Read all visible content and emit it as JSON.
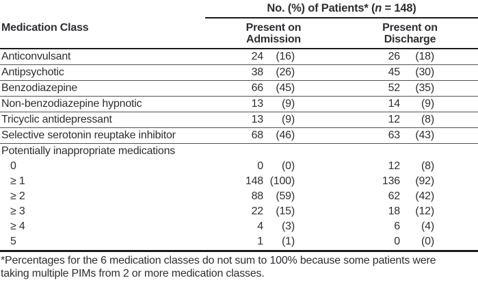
{
  "colors": {
    "text": "#2e2d31",
    "rule_heavy": "#1a191c",
    "rule_light": "#504f53",
    "background": "#ffffff"
  },
  "table": {
    "span_header": {
      "prefix": "No. (%) of Patients* (",
      "n_italic": "n",
      "suffix": " = 148)"
    },
    "medication_class_header": "Medication Class",
    "admission_header_line1": "Present on",
    "admission_header_line2": "Admission",
    "discharge_header_line1": "Present on",
    "discharge_header_line2": "Discharge",
    "rows": [
      {
        "label": "Anticonvulsant",
        "indent": false,
        "separator": true,
        "admission_n": "24",
        "admission_pct": "(16)",
        "discharge_n": "26",
        "discharge_pct": "(18)"
      },
      {
        "label": "Antipsychotic",
        "indent": false,
        "separator": true,
        "admission_n": "38",
        "admission_pct": "(26)",
        "discharge_n": "45",
        "discharge_pct": "(30)"
      },
      {
        "label": "Benzodiazepine",
        "indent": false,
        "separator": true,
        "admission_n": "66",
        "admission_pct": "(45)",
        "discharge_n": "52",
        "discharge_pct": "(35)"
      },
      {
        "label": "Non-benzodiazepine hypnotic",
        "indent": false,
        "separator": true,
        "admission_n": "13",
        "admission_pct": "(9)",
        "discharge_n": "14",
        "discharge_pct": "(9)"
      },
      {
        "label": "Tricyclic antidepressant",
        "indent": false,
        "separator": true,
        "admission_n": "13",
        "admission_pct": "(9)",
        "discharge_n": "12",
        "discharge_pct": "(8)"
      },
      {
        "label": "Selective serotonin reuptake inhibitor",
        "indent": false,
        "separator": true,
        "admission_n": "68",
        "admission_pct": "(46)",
        "discharge_n": "63",
        "discharge_pct": "(43)"
      },
      {
        "label": "Potentially inappropriate medications",
        "indent": false,
        "separator": false,
        "admission_n": "",
        "admission_pct": "",
        "discharge_n": "",
        "discharge_pct": ""
      },
      {
        "label": "0",
        "indent": true,
        "separator": false,
        "admission_n": "0",
        "admission_pct": "(0)",
        "discharge_n": "12",
        "discharge_pct": "(8)"
      },
      {
        "label": "≥ 1",
        "indent": true,
        "separator": false,
        "admission_n": "148",
        "admission_pct": "(100)",
        "discharge_n": "136",
        "discharge_pct": "(92)"
      },
      {
        "label": "≥ 2",
        "indent": true,
        "separator": false,
        "admission_n": "88",
        "admission_pct": "(59)",
        "discharge_n": "62",
        "discharge_pct": "(42)"
      },
      {
        "label": "≥ 3",
        "indent": true,
        "separator": false,
        "admission_n": "22",
        "admission_pct": "(15)",
        "discharge_n": "18",
        "discharge_pct": "(12)"
      },
      {
        "label": "≥ 4",
        "indent": true,
        "separator": false,
        "admission_n": "4",
        "admission_pct": "(3)",
        "discharge_n": "6",
        "discharge_pct": "(4)"
      },
      {
        "label": "5",
        "indent": true,
        "separator": false,
        "admission_n": "1",
        "admission_pct": "(1)",
        "discharge_n": "0",
        "discharge_pct": "(0)"
      }
    ],
    "footnote": "*Percentages for the 6 medication classes do not sum to 100% because some patients were taking multiple PIMs from 2 or more medication classes."
  }
}
